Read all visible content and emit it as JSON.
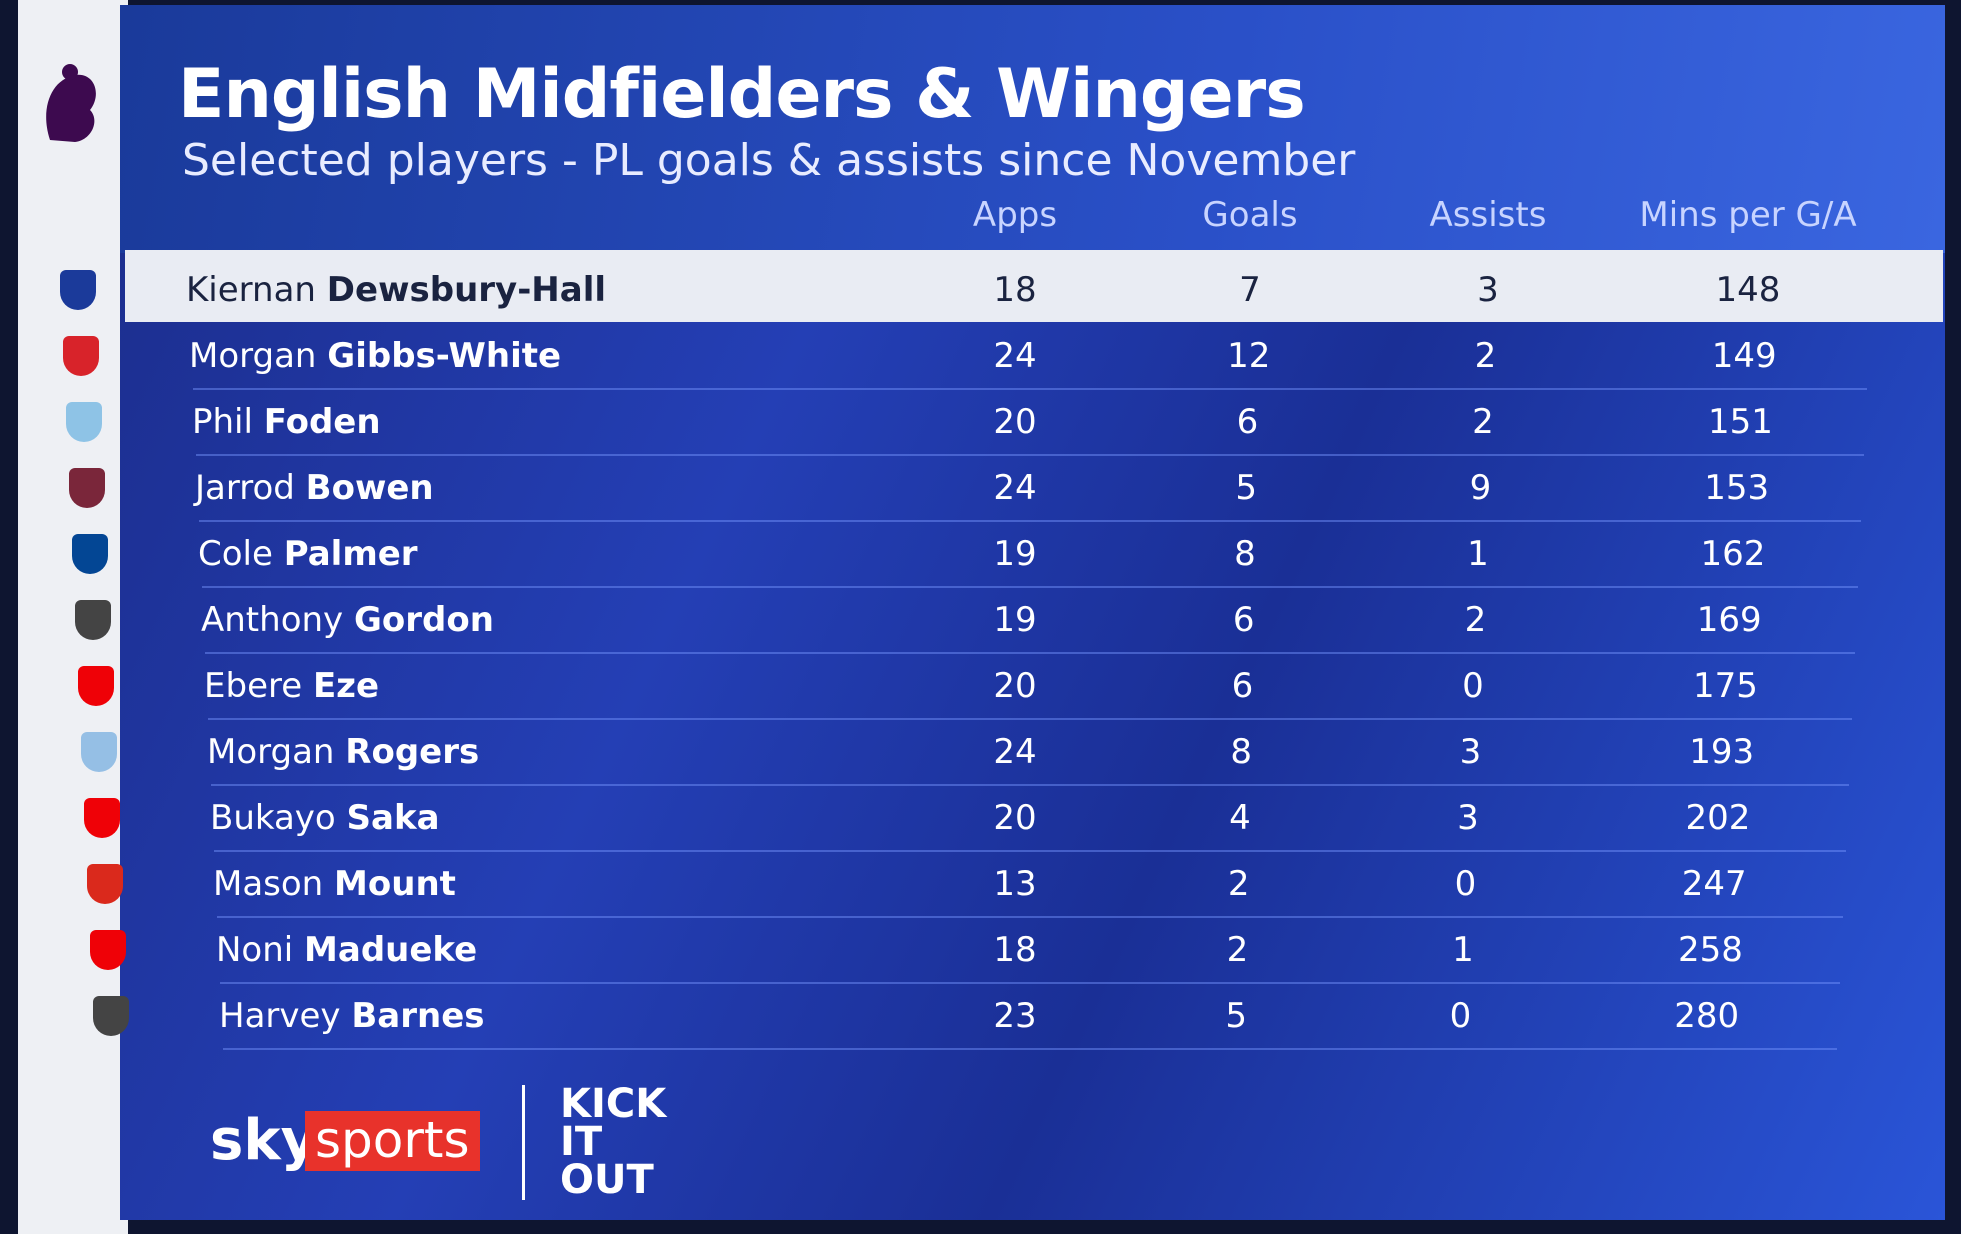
{
  "header": {
    "title": "English Midfielders & Wingers",
    "subtitle": "Selected players - PL goals & assists since November"
  },
  "table": {
    "columns": [
      "Apps",
      "Goals",
      "Assists",
      "Mins per G/A"
    ],
    "rows": [
      {
        "first": "Kiernan",
        "last": "Dewsbury-Hall",
        "cells": [
          18,
          7,
          3,
          148
        ]
      },
      {
        "first": "Morgan",
        "last": "Gibbs-White",
        "cells": [
          24,
          12,
          2,
          149
        ]
      },
      {
        "first": "Phil",
        "last": "Foden",
        "cells": [
          20,
          6,
          2,
          151
        ]
      },
      {
        "first": "Jarrod",
        "last": "Bowen",
        "cells": [
          24,
          5,
          9,
          153
        ]
      },
      {
        "first": "Cole",
        "last": "Palmer",
        "cells": [
          19,
          8,
          1,
          162
        ]
      },
      {
        "first": "Anthony",
        "last": "Gordon",
        "cells": [
          19,
          6,
          2,
          169
        ]
      },
      {
        "first": "Ebere",
        "last": "Eze",
        "cells": [
          20,
          6,
          0,
          175
        ]
      },
      {
        "first": "Morgan",
        "last": "Rogers",
        "cells": [
          24,
          8,
          3,
          193
        ]
      },
      {
        "first": "Bukayo",
        "last": "Saka",
        "cells": [
          20,
          4,
          3,
          202
        ]
      },
      {
        "first": "Mason",
        "last": "Mount",
        "cells": [
          13,
          2,
          0,
          247
        ]
      },
      {
        "first": "Noni",
        "last": "Madueke",
        "cells": [
          18,
          2,
          1,
          258
        ]
      },
      {
        "first": "Harvey",
        "last": "Barnes",
        "cells": [
          23,
          5,
          0,
          280
        ]
      }
    ]
  },
  "footer": {
    "brand": "sky",
    "brand_tag": "sports",
    "partner": "KICK IT OUT"
  }
}
